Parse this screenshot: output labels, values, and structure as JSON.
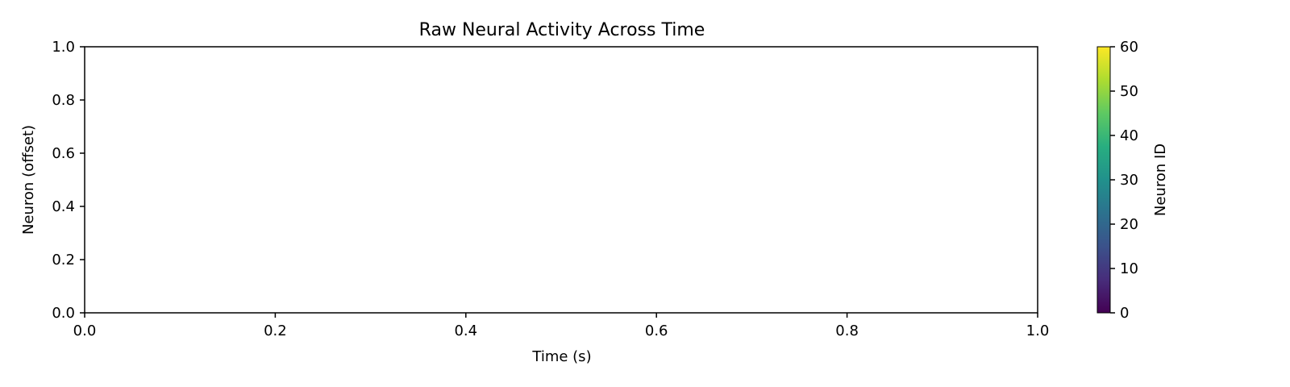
{
  "chart_data": {
    "type": "line",
    "title": "Raw Neural Activity Across Time",
    "xlabel": "Time (s)",
    "ylabel": "Neuron (offset)",
    "xlim": [
      0.0,
      1.0
    ],
    "ylim": [
      0.0,
      1.0
    ],
    "xticks": [
      0.0,
      0.2,
      0.4,
      0.6,
      0.8,
      1.0
    ],
    "xtick_labels": [
      "0.0",
      "0.2",
      "0.4",
      "0.6",
      "0.8",
      "1.0"
    ],
    "yticks": [
      0.0,
      0.2,
      0.4,
      0.6,
      0.8,
      1.0
    ],
    "ytick_labels": [
      "0.0",
      "0.2",
      "0.4",
      "0.6",
      "0.8",
      "1.0"
    ],
    "series": [],
    "grid": false,
    "colorbar": {
      "label": "Neuron ID",
      "colormap": "viridis",
      "range": [
        0,
        60
      ],
      "ticks": [
        0,
        10,
        20,
        30,
        40,
        50,
        60
      ],
      "tick_labels": [
        "0",
        "10",
        "20",
        "30",
        "40",
        "50",
        "60"
      ]
    }
  }
}
